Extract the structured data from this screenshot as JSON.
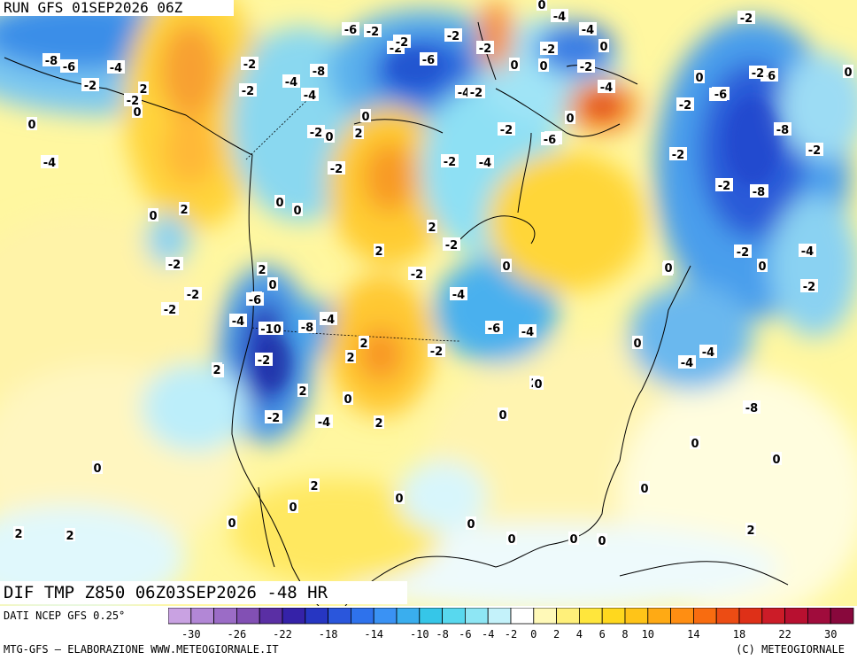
{
  "header": {
    "run_title": "RUN GFS 01SEP2026 06Z"
  },
  "plot": {
    "title": "DIF TMP Z850 06Z03SEP2026 -48 HR"
  },
  "footer": {
    "data_source": "DATI NCEP GFS 0.25°",
    "credit_left": "MTG-GFS — ELABORAZIONE WWW.METEOGIORNALE.IT",
    "credit_right": "(C) METEOGIORNALE"
  },
  "legend": {
    "colors": [
      "#c9a2e2",
      "#b287d6",
      "#9b6cc6",
      "#8250b4",
      "#5a2fa4",
      "#3522a8",
      "#2636c2",
      "#2a56dc",
      "#2e72ec",
      "#3a92f4",
      "#3aaeee",
      "#36c6e8",
      "#58d8ee",
      "#8ee6f4",
      "#c4f2fa",
      "#ffffff",
      "#fff9b8",
      "#fff07a",
      "#ffe63c",
      "#ffd81e",
      "#ffc418",
      "#ffaa14",
      "#ff8e12",
      "#f86c10",
      "#ec4c14",
      "#de3018",
      "#cc1c28",
      "#b81030",
      "#a00c3c",
      "#88083c"
    ],
    "tick_labels": [
      "-30",
      "-26",
      "-22",
      "-18",
      "-14",
      "-10",
      "-8",
      "-6",
      "-4",
      "-2",
      "0",
      "2",
      "4",
      "6",
      "8",
      "10",
      "14",
      "18",
      "22",
      "30"
    ]
  },
  "contour_labels": [
    "-6",
    "-2",
    "-2",
    "-2",
    "-6",
    "-2",
    "-4",
    "-2",
    "-2",
    "-8",
    "-6",
    "-4",
    "-2",
    "2",
    "-2",
    "-4",
    "-8",
    "-4",
    "-2",
    "-2",
    "0",
    "-4",
    "-4",
    "-2",
    "0",
    "0",
    "2",
    "-2",
    "0",
    "0",
    "-2",
    "-2",
    "0",
    "-2",
    "0",
    "-2",
    "-4",
    "-2",
    "-4",
    "-6",
    "-2",
    "0",
    "-2",
    "0",
    "-4",
    "-2",
    "-4",
    "-4",
    "0",
    "-6",
    "-2",
    "-6",
    "-8",
    "-2",
    "-2",
    "-6",
    "-8",
    "0",
    "0",
    "2",
    "0",
    "0",
    "2",
    "2",
    "0",
    "-2",
    "0",
    "-2",
    "-2",
    "-4",
    "0",
    "0",
    "-2",
    "-2",
    "-6",
    "-4",
    "-4",
    "-10",
    "-8",
    "-4",
    "2",
    "0",
    "0",
    "2",
    "-6",
    "-4",
    "-4",
    "-2",
    "-2",
    "0",
    "-8",
    "-2",
    "0",
    "2",
    "-2",
    "2",
    "-2",
    "-4",
    "2",
    "0",
    "2",
    "2",
    "2",
    "0",
    "0",
    "0",
    "0",
    "2",
    "0",
    "0",
    "0",
    "0",
    "0",
    "2",
    "2",
    "0",
    "0",
    "0",
    "2"
  ]
}
